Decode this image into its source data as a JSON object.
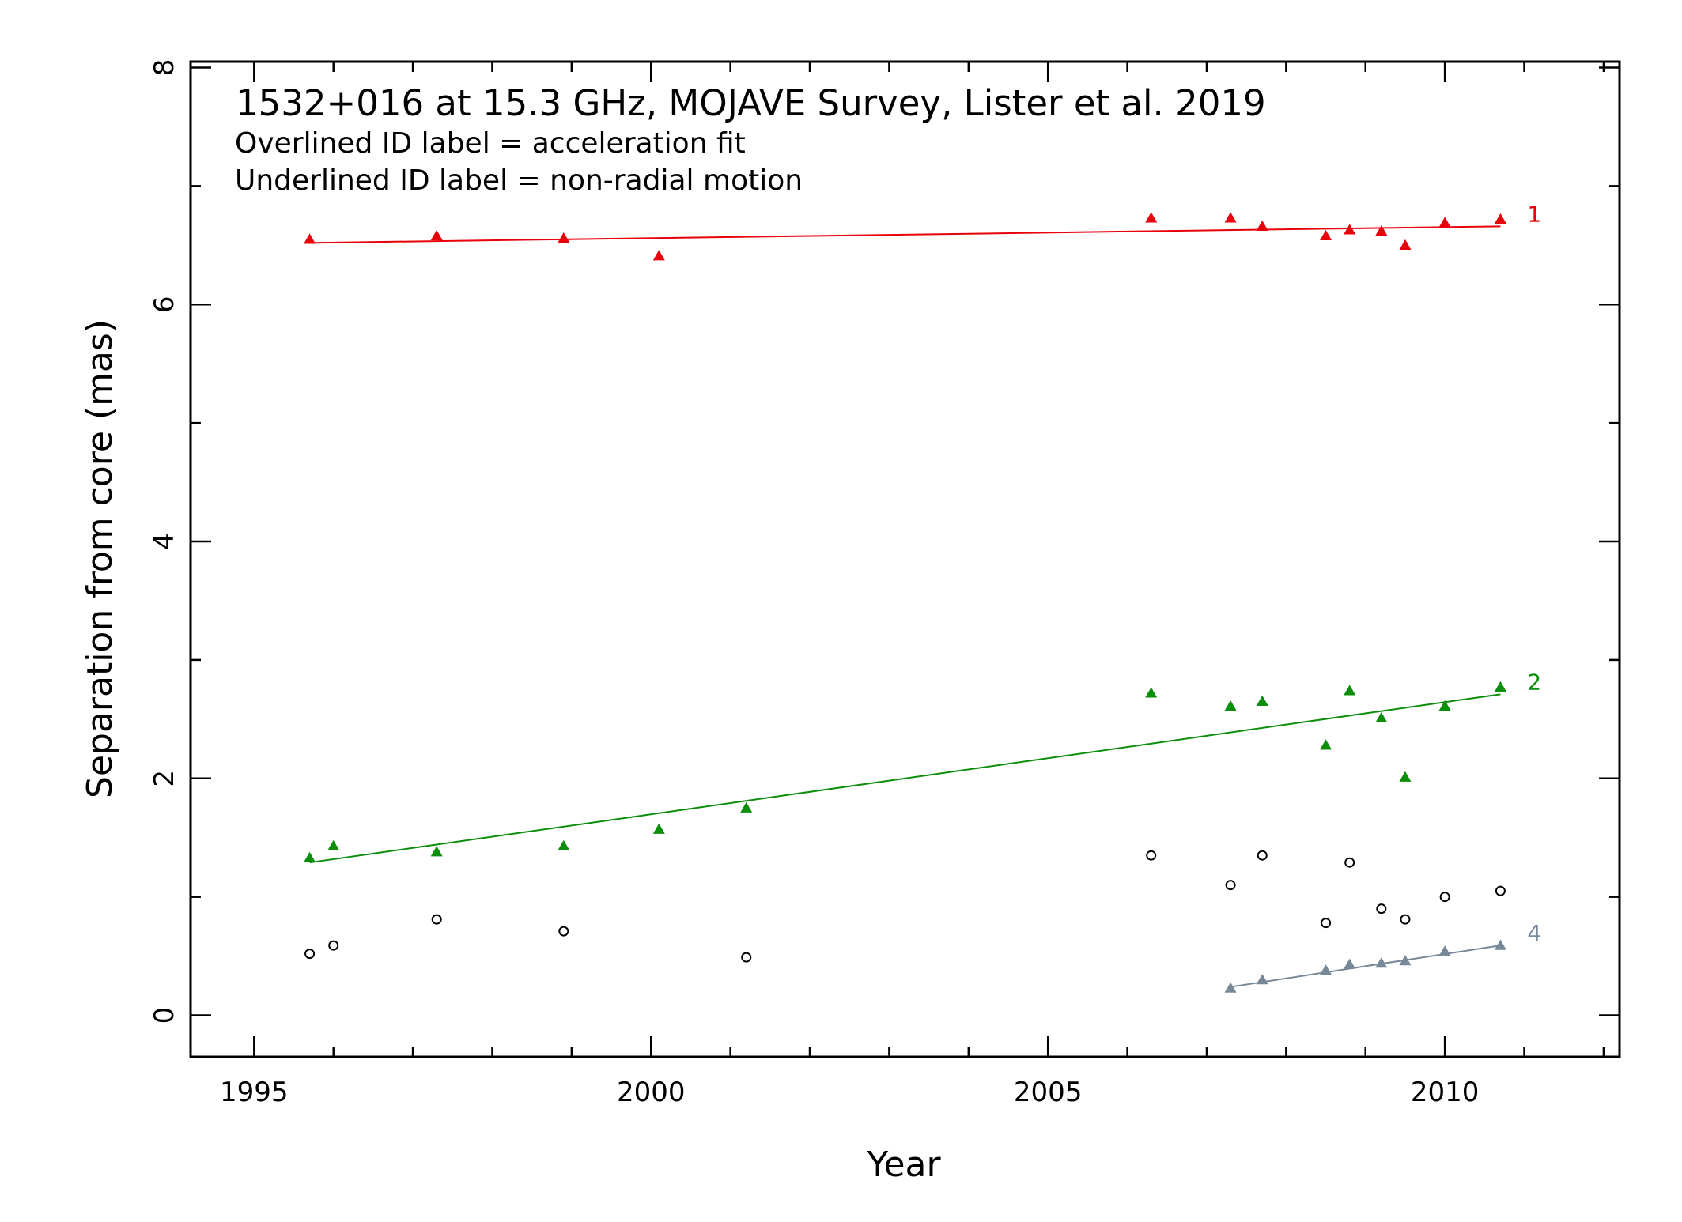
{
  "chart_data": {
    "type": "scatter",
    "title": "1532+016 at 15.3 GHz, MOJAVE Survey, Lister et al. 2019",
    "notes": [
      "Overlined ID label = acceleration fit",
      "Underlined ID label = non-radial motion"
    ],
    "xlabel": "Year",
    "ylabel": "Separation from core (mas)",
    "xlim": [
      1994.2,
      2012.2
    ],
    "ylim": [
      -0.35,
      8.05
    ],
    "xticks": [
      1995,
      2000,
      2005,
      2010
    ],
    "yticks": [
      0,
      2,
      4,
      6,
      8
    ],
    "grid": false,
    "series": [
      {
        "name": "1",
        "color": "#e8000b",
        "marker": "triangle",
        "x": [
          1995.7,
          1997.3,
          1998.9,
          2000.1,
          2006.3,
          2007.3,
          2007.7,
          2008.5,
          2008.8,
          2009.2,
          2009.5,
          2010.0,
          2010.7
        ],
        "y": [
          6.55,
          6.58,
          6.56,
          6.41,
          6.73,
          6.73,
          6.66,
          6.58,
          6.63,
          6.62,
          6.5,
          6.69,
          6.72
        ],
        "fit": {
          "x": [
            1995.7,
            2010.7
          ],
          "y": [
            6.52,
            6.66
          ]
        }
      },
      {
        "name": "2",
        "color": "#0b8f0b",
        "marker": "triangle",
        "x": [
          1995.7,
          1996.0,
          1997.3,
          1998.9,
          2000.1,
          2001.2,
          2006.3,
          2007.3,
          2007.7,
          2008.5,
          2008.8,
          2009.2,
          2009.5,
          2010.0,
          2010.7
        ],
        "y": [
          1.33,
          1.43,
          1.38,
          1.43,
          1.57,
          1.75,
          2.72,
          2.61,
          2.65,
          2.28,
          2.74,
          2.51,
          2.01,
          2.61,
          2.77
        ],
        "fit": {
          "x": [
            1995.7,
            2010.7
          ],
          "y": [
            1.29,
            2.71
          ]
        }
      },
      {
        "name": "4",
        "color": "#778899",
        "marker": "triangle",
        "x": [
          2007.3,
          2007.7,
          2008.5,
          2008.8,
          2009.2,
          2009.5,
          2010.0,
          2010.7
        ],
        "y": [
          0.23,
          0.3,
          0.38,
          0.43,
          0.44,
          0.46,
          0.54,
          0.59
        ],
        "fit": {
          "x": [
            2007.3,
            2010.7
          ],
          "y": [
            0.24,
            0.59
          ]
        }
      },
      {
        "name": "",
        "color": "#000000",
        "marker": "circle",
        "x": [
          1995.7,
          1996.0,
          1997.3,
          1998.9,
          2001.2,
          2006.3,
          2007.3,
          2007.7,
          2008.5,
          2008.8,
          2009.2,
          2009.5,
          2010.0,
          2010.7
        ],
        "y": [
          0.52,
          0.59,
          0.81,
          0.71,
          0.49,
          1.35,
          1.1,
          1.35,
          0.78,
          1.29,
          0.9,
          0.81,
          1.0,
          1.05
        ]
      }
    ]
  }
}
